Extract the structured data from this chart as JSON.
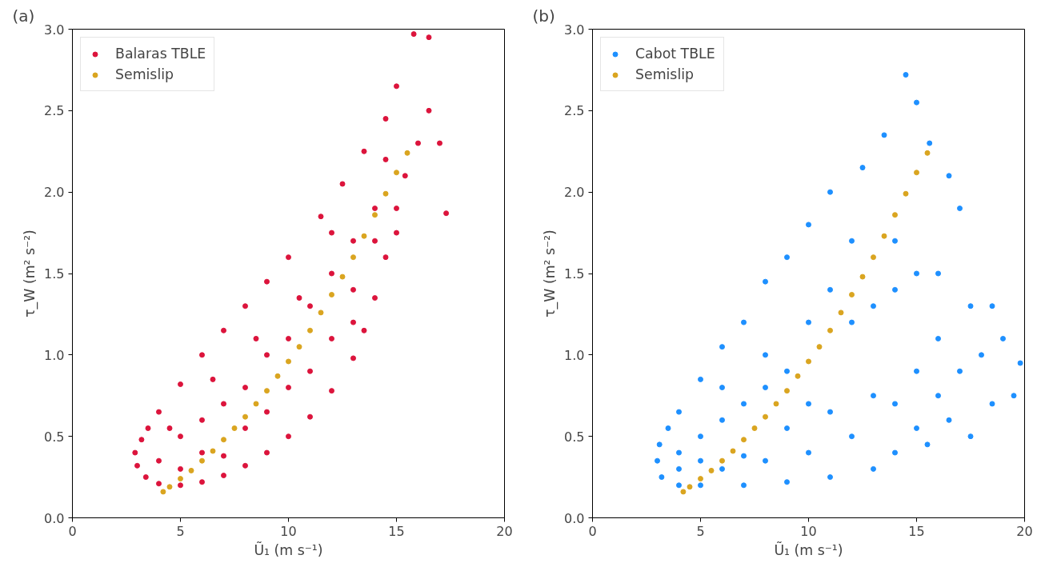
{
  "chart_data": [
    {
      "type": "scatter",
      "title": "(a)",
      "xlabel": "Ũ₁ (m s⁻¹)",
      "ylabel": "τ_W (m² s⁻²)",
      "xlim": [
        0,
        20
      ],
      "ylim": [
        0,
        3
      ],
      "xticks": [
        0,
        5,
        10,
        15,
        20
      ],
      "yticks": [
        {
          "value": 0,
          "label": "0.0"
        },
        {
          "value": 0.5,
          "label": "0.5"
        },
        {
          "value": 1,
          "label": "1.0"
        },
        {
          "value": 1.5,
          "label": "1.5"
        },
        {
          "value": 2,
          "label": "2.0"
        },
        {
          "value": 2.5,
          "label": "2.5"
        },
        {
          "value": 3,
          "label": "3.0"
        }
      ],
      "grid": false,
      "legend": "top left",
      "marker": "circle",
      "series": [
        {
          "name": "Balaras TBLE",
          "color": "#dc143c",
          "x": [
            2.9,
            3.0,
            3.4,
            4,
            5,
            6,
            7,
            8,
            9,
            10,
            11,
            12,
            13,
            13.5,
            14,
            14.5,
            15,
            15.4,
            16,
            16.5,
            17.3,
            17,
            16.5,
            15.8,
            15,
            14.5,
            13.5,
            12.5,
            11.5,
            10,
            9,
            8,
            7,
            6,
            5,
            4,
            3.5,
            3.2,
            5,
            6,
            7,
            8,
            9,
            10,
            11,
            12,
            13,
            14,
            6,
            8,
            10,
            12,
            13,
            14,
            4,
            5,
            7,
            9,
            11,
            13,
            15,
            4.5,
            6.5,
            8.5,
            10.5,
            12,
            14.5
          ],
          "values": [
            0.4,
            0.32,
            0.25,
            0.21,
            0.2,
            0.22,
            0.26,
            0.32,
            0.4,
            0.5,
            0.62,
            0.78,
            0.98,
            1.15,
            1.35,
            1.6,
            1.9,
            2.1,
            2.3,
            2.5,
            1.87,
            2.3,
            2.95,
            2.97,
            2.65,
            2.45,
            2.25,
            2.05,
            1.85,
            1.6,
            1.45,
            1.3,
            1.15,
            1.0,
            0.82,
            0.65,
            0.55,
            0.48,
            0.5,
            0.6,
            0.7,
            0.8,
            1.0,
            1.1,
            1.3,
            1.5,
            1.7,
            1.9,
            0.4,
            0.55,
            0.8,
            1.1,
            1.4,
            1.7,
            0.35,
            0.3,
            0.38,
            0.65,
            0.9,
            1.2,
            1.75,
            0.55,
            0.85,
            1.1,
            1.35,
            1.75,
            2.2
          ]
        },
        {
          "name": "Semislip",
          "color": "#daa520",
          "x": [
            4.2,
            4.5,
            5,
            5.5,
            6,
            6.5,
            7,
            7.5,
            8,
            8.5,
            9,
            9.5,
            10,
            10.5,
            11,
            11.5,
            12,
            12.5,
            13,
            13.5,
            14,
            14.5,
            15,
            15.5
          ],
          "values": [
            0.16,
            0.19,
            0.24,
            0.29,
            0.35,
            0.41,
            0.48,
            0.55,
            0.62,
            0.7,
            0.78,
            0.87,
            0.96,
            1.05,
            1.15,
            1.26,
            1.37,
            1.48,
            1.6,
            1.73,
            1.86,
            1.99,
            2.12,
            2.24
          ]
        }
      ]
    },
    {
      "type": "scatter",
      "title": "(b)",
      "xlabel": "Ũ₁ (m s⁻¹)",
      "ylabel": "τ_W (m² s⁻²)",
      "xlim": [
        0,
        20
      ],
      "ylim": [
        0,
        3
      ],
      "xticks": [
        0,
        5,
        10,
        15,
        20
      ],
      "yticks": [
        {
          "value": 0,
          "label": "0.0"
        },
        {
          "value": 0.5,
          "label": "0.5"
        },
        {
          "value": 1,
          "label": "1.0"
        },
        {
          "value": 1.5,
          "label": "1.5"
        },
        {
          "value": 2,
          "label": "2.0"
        },
        {
          "value": 2.5,
          "label": "2.5"
        },
        {
          "value": 3,
          "label": "3.0"
        }
      ],
      "grid": false,
      "legend": "top left",
      "marker": "circle",
      "series": [
        {
          "name": "Cabot TBLE",
          "color": "#1e90ff",
          "x": [
            3,
            3.2,
            4,
            5,
            7,
            9,
            11,
            13,
            14,
            15,
            16,
            17,
            18,
            19,
            19.8,
            19.5,
            18.5,
            17.5,
            16.5,
            15.5,
            16,
            17.5,
            18.5,
            17,
            16.5,
            15.6,
            15,
            14.5,
            13.5,
            12.5,
            11,
            10,
            9,
            8,
            7,
            6,
            5,
            4,
            3.5,
            3.1,
            4,
            5,
            6,
            7,
            8,
            9,
            10,
            11,
            12,
            13,
            14,
            15,
            5,
            7,
            9,
            11,
            13,
            15,
            6,
            8,
            10,
            12,
            14,
            4,
            6,
            8,
            10,
            12,
            14,
            16
          ],
          "values": [
            0.35,
            0.25,
            0.2,
            0.2,
            0.2,
            0.22,
            0.25,
            0.3,
            0.4,
            0.55,
            0.75,
            0.9,
            1.0,
            1.1,
            0.95,
            0.75,
            0.7,
            0.5,
            0.6,
            0.45,
            1.5,
            1.3,
            1.3,
            1.9,
            2.1,
            2.3,
            2.55,
            2.72,
            2.35,
            2.15,
            2.0,
            1.8,
            1.6,
            1.45,
            1.2,
            1.05,
            0.85,
            0.65,
            0.55,
            0.45,
            0.4,
            0.5,
            0.6,
            0.7,
            0.8,
            0.9,
            0.7,
            1.4,
            1.7,
            1.3,
            1.4,
            1.5,
            0.35,
            0.38,
            0.55,
            0.65,
            0.75,
            0.9,
            0.8,
            1.0,
            1.2,
            1.2,
            1.7,
            0.3,
            0.3,
            0.35,
            0.4,
            0.5,
            0.7,
            1.1
          ]
        },
        {
          "name": "Semislip",
          "color": "#daa520",
          "x": [
            4.2,
            4.5,
            5,
            5.5,
            6,
            6.5,
            7,
            7.5,
            8,
            8.5,
            9,
            9.5,
            10,
            10.5,
            11,
            11.5,
            12,
            12.5,
            13,
            13.5,
            14,
            14.5,
            15,
            15.5
          ],
          "values": [
            0.16,
            0.19,
            0.24,
            0.29,
            0.35,
            0.41,
            0.48,
            0.55,
            0.62,
            0.7,
            0.78,
            0.87,
            0.96,
            1.05,
            1.15,
            1.26,
            1.37,
            1.48,
            1.6,
            1.73,
            1.86,
            1.99,
            2.12,
            2.24
          ]
        }
      ]
    }
  ]
}
